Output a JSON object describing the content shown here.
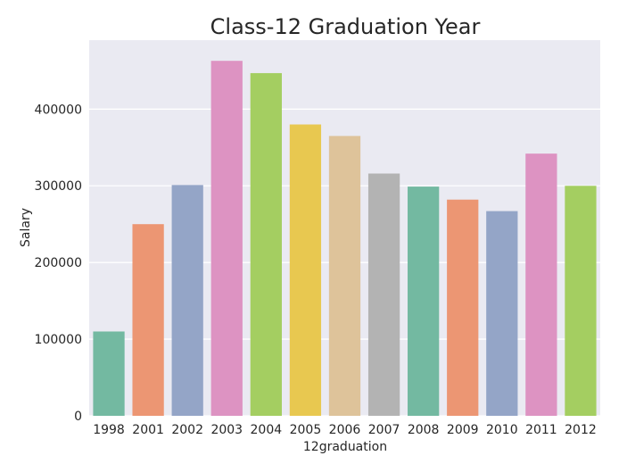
{
  "chart_data": {
    "type": "bar",
    "title": "Class-12 Graduation Year",
    "xlabel": "12graduation",
    "ylabel": "Salary",
    "categories": [
      "1998",
      "2001",
      "2002",
      "2003",
      "2004",
      "2005",
      "2006",
      "2007",
      "2008",
      "2009",
      "2010",
      "2011",
      "2012"
    ],
    "values": [
      110000,
      250000,
      301000,
      463000,
      447000,
      380000,
      365000,
      316000,
      299000,
      282000,
      267000,
      342000,
      300000
    ],
    "ylim": [
      0,
      490000
    ],
    "yticks": [
      0,
      100000,
      200000,
      300000,
      400000
    ],
    "ytick_labels": [
      "0",
      "100000",
      "200000",
      "300000",
      "400000"
    ],
    "grid": true,
    "colors": [
      "#73b9a1",
      "#ec9673",
      "#94a5c7",
      "#dd93c2",
      "#a4ce61",
      "#e8c850",
      "#dec39a",
      "#b3b3b3",
      "#73b9a1",
      "#ec9673",
      "#94a5c7",
      "#dd93c2",
      "#a4ce61"
    ],
    "background": "#eaeaf2"
  }
}
